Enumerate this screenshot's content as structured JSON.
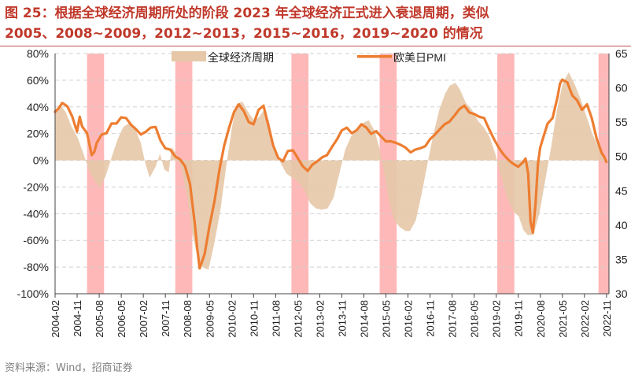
{
  "title_line1": "图 25：根据全球经济周期所处的阶段 2023 年全球经济正式进入衰退周期，类似",
  "title_line2": "2005、2008~2009，2012~2013，2015~2016，2019~2020 的情况",
  "source": "资料来源：Wind，招商证券",
  "colors": {
    "title": "#c0392b",
    "area": "#e6c8a8",
    "line": "#ed7d31",
    "recession": "#ff9a9a",
    "grid": "#d0d0d0"
  },
  "chart_data": {
    "type": "area+line",
    "legend": [
      {
        "name": "全球经济周期",
        "kind": "area"
      },
      {
        "name": "欧美日PMI",
        "kind": "line"
      }
    ],
    "left_axis": {
      "min": -100,
      "max": 80,
      "step": 20,
      "format": "percent",
      "tick_labels": [
        "80%",
        "60%",
        "40%",
        "20%",
        "0%",
        "-20%",
        "-40%",
        "-60%",
        "-80%",
        "-100%"
      ]
    },
    "right_axis": {
      "min": 30,
      "max": 65,
      "step": 5,
      "tick_labels": [
        "65",
        "60",
        "55",
        "50",
        "45",
        "40",
        "35",
        "30"
      ]
    },
    "x_range": [
      2004.083,
      2022.917
    ],
    "x_tick_labels": [
      "2004-02",
      "2004-11",
      "2005-08",
      "2006-05",
      "2007-02",
      "2007-11",
      "2008-08",
      "2009-05",
      "2010-02",
      "2010-11",
      "2011-08",
      "2012-05",
      "2013-02",
      "2013-11",
      "2014-08",
      "2015-05",
      "2016-02",
      "2016-11",
      "2017-08",
      "2018-05",
      "2019-02",
      "2019-11",
      "2020-08",
      "2021-05",
      "2022-02",
      "2022-11"
    ],
    "recession_bands": [
      [
        2005.17,
        2005.75
      ],
      [
        2008.17,
        2008.75
      ],
      [
        2012.12,
        2012.7
      ],
      [
        2015.12,
        2015.7
      ],
      [
        2019.12,
        2019.7
      ],
      [
        2022.56,
        2023.15
      ]
    ],
    "series": [
      {
        "name": "全球经济周期",
        "axis": "left",
        "points": [
          [
            2004.08,
            37
          ],
          [
            2004.25,
            42
          ],
          [
            2004.45,
            36
          ],
          [
            2004.65,
            25
          ],
          [
            2004.85,
            17
          ],
          [
            2005.05,
            5
          ],
          [
            2005.25,
            -8
          ],
          [
            2005.45,
            -16
          ],
          [
            2005.6,
            -21
          ],
          [
            2005.8,
            -12
          ],
          [
            2006.0,
            2
          ],
          [
            2006.2,
            15
          ],
          [
            2006.4,
            25
          ],
          [
            2006.6,
            28
          ],
          [
            2006.8,
            24
          ],
          [
            2007.0,
            13
          ],
          [
            2007.15,
            -2
          ],
          [
            2007.3,
            -13
          ],
          [
            2007.5,
            -5
          ],
          [
            2007.65,
            5
          ],
          [
            2007.8,
            -7
          ],
          [
            2007.95,
            -9
          ],
          [
            2008.05,
            10
          ],
          [
            2008.2,
            5
          ],
          [
            2008.4,
            -8
          ],
          [
            2008.6,
            -30
          ],
          [
            2008.75,
            -55
          ],
          [
            2008.9,
            -70
          ],
          [
            2009.1,
            -80
          ],
          [
            2009.3,
            -82
          ],
          [
            2009.5,
            -62
          ],
          [
            2009.7,
            -38
          ],
          [
            2009.9,
            -5
          ],
          [
            2010.1,
            25
          ],
          [
            2010.25,
            42
          ],
          [
            2010.45,
            44
          ],
          [
            2010.65,
            36
          ],
          [
            2010.85,
            30
          ],
          [
            2011.0,
            32
          ],
          [
            2011.2,
            38
          ],
          [
            2011.35,
            30
          ],
          [
            2011.55,
            10
          ],
          [
            2011.75,
            -2
          ],
          [
            2011.95,
            -10
          ],
          [
            2012.15,
            -13
          ],
          [
            2012.35,
            -16
          ],
          [
            2012.55,
            -22
          ],
          [
            2012.75,
            -32
          ],
          [
            2012.95,
            -36
          ],
          [
            2013.15,
            -37
          ],
          [
            2013.35,
            -36
          ],
          [
            2013.55,
            -28
          ],
          [
            2013.75,
            -10
          ],
          [
            2013.95,
            8
          ],
          [
            2014.15,
            18
          ],
          [
            2014.35,
            24
          ],
          [
            2014.55,
            28
          ],
          [
            2014.75,
            30
          ],
          [
            2014.95,
            22
          ],
          [
            2015.1,
            10
          ],
          [
            2015.3,
            -12
          ],
          [
            2015.45,
            -32
          ],
          [
            2015.6,
            -44
          ],
          [
            2015.8,
            -50
          ],
          [
            2016.0,
            -53
          ],
          [
            2016.15,
            -53
          ],
          [
            2016.35,
            -45
          ],
          [
            2016.55,
            -25
          ],
          [
            2016.75,
            -2
          ],
          [
            2016.95,
            20
          ],
          [
            2017.15,
            38
          ],
          [
            2017.35,
            50
          ],
          [
            2017.5,
            56
          ],
          [
            2017.7,
            58
          ],
          [
            2017.85,
            53
          ],
          [
            2018.05,
            43
          ],
          [
            2018.25,
            38
          ],
          [
            2018.45,
            30
          ],
          [
            2018.65,
            25
          ],
          [
            2018.85,
            18
          ],
          [
            2019.05,
            5
          ],
          [
            2019.25,
            -12
          ],
          [
            2019.45,
            -28
          ],
          [
            2019.65,
            -38
          ],
          [
            2019.85,
            -42
          ],
          [
            2020.0,
            -52
          ],
          [
            2020.15,
            -56
          ],
          [
            2020.35,
            -56
          ],
          [
            2020.55,
            -40
          ],
          [
            2020.75,
            -15
          ],
          [
            2020.95,
            10
          ],
          [
            2021.15,
            38
          ],
          [
            2021.35,
            58
          ],
          [
            2021.55,
            66
          ],
          [
            2021.75,
            57
          ],
          [
            2021.95,
            46
          ],
          [
            2022.15,
            33
          ],
          [
            2022.35,
            20
          ],
          [
            2022.55,
            10
          ],
          [
            2022.75,
            0
          ],
          [
            2022.85,
            -3
          ]
        ]
      },
      {
        "name": "欧美日PMI",
        "axis": "right",
        "points": [
          [
            2004.08,
            56.5
          ],
          [
            2004.2,
            57.0
          ],
          [
            2004.33,
            57.8
          ],
          [
            2004.5,
            57.3
          ],
          [
            2004.67,
            55.8
          ],
          [
            2004.83,
            53.6
          ],
          [
            2004.92,
            55.8
          ],
          [
            2005.0,
            54.4
          ],
          [
            2005.17,
            53.4
          ],
          [
            2005.33,
            50.2
          ],
          [
            2005.42,
            50.7
          ],
          [
            2005.5,
            52.0
          ],
          [
            2005.67,
            53.2
          ],
          [
            2005.83,
            53.4
          ],
          [
            2006.0,
            54.8
          ],
          [
            2006.17,
            54.8
          ],
          [
            2006.33,
            55.7
          ],
          [
            2006.5,
            55.6
          ],
          [
            2006.67,
            54.6
          ],
          [
            2006.83,
            54.0
          ],
          [
            2007.0,
            53.2
          ],
          [
            2007.17,
            53.6
          ],
          [
            2007.33,
            54.2
          ],
          [
            2007.5,
            54.3
          ],
          [
            2007.67,
            52.3
          ],
          [
            2007.83,
            51.2
          ],
          [
            2008.0,
            51.0
          ],
          [
            2008.17,
            50.0
          ],
          [
            2008.33,
            49.6
          ],
          [
            2008.5,
            48.6
          ],
          [
            2008.67,
            46.0
          ],
          [
            2008.83,
            40.4
          ],
          [
            2008.92,
            36.5
          ],
          [
            2009.0,
            33.7
          ],
          [
            2009.17,
            35.8
          ],
          [
            2009.33,
            39.8
          ],
          [
            2009.5,
            43.4
          ],
          [
            2009.67,
            48.0
          ],
          [
            2009.83,
            51.5
          ],
          [
            2010.0,
            54.2
          ],
          [
            2010.17,
            56.5
          ],
          [
            2010.33,
            57.6
          ],
          [
            2010.5,
            56.6
          ],
          [
            2010.67,
            55.0
          ],
          [
            2010.83,
            54.7
          ],
          [
            2011.0,
            56.8
          ],
          [
            2011.17,
            57.4
          ],
          [
            2011.33,
            54.6
          ],
          [
            2011.5,
            51.6
          ],
          [
            2011.67,
            49.8
          ],
          [
            2011.83,
            49.3
          ],
          [
            2012.0,
            50.8
          ],
          [
            2012.17,
            50.9
          ],
          [
            2012.33,
            49.8
          ],
          [
            2012.5,
            48.6
          ],
          [
            2012.67,
            47.9
          ],
          [
            2012.83,
            48.8
          ],
          [
            2013.0,
            49.3
          ],
          [
            2013.17,
            49.9
          ],
          [
            2013.33,
            50.2
          ],
          [
            2013.5,
            51.4
          ],
          [
            2013.67,
            52.5
          ],
          [
            2013.83,
            53.8
          ],
          [
            2014.0,
            54.2
          ],
          [
            2014.17,
            53.4
          ],
          [
            2014.33,
            53.8
          ],
          [
            2014.5,
            54.7
          ],
          [
            2014.67,
            54.2
          ],
          [
            2014.83,
            53.3
          ],
          [
            2015.0,
            53.7
          ],
          [
            2015.17,
            52.9
          ],
          [
            2015.33,
            52.2
          ],
          [
            2015.5,
            52.2
          ],
          [
            2015.67,
            52.0
          ],
          [
            2015.83,
            51.7
          ],
          [
            2016.0,
            51.3
          ],
          [
            2016.17,
            50.6
          ],
          [
            2016.33,
            51.0
          ],
          [
            2016.5,
            51.2
          ],
          [
            2016.67,
            51.5
          ],
          [
            2016.83,
            52.5
          ],
          [
            2017.0,
            53.2
          ],
          [
            2017.17,
            54.0
          ],
          [
            2017.33,
            54.7
          ],
          [
            2017.5,
            55.1
          ],
          [
            2017.67,
            56.0
          ],
          [
            2017.83,
            56.9
          ],
          [
            2018.0,
            57.4
          ],
          [
            2018.17,
            56.4
          ],
          [
            2018.33,
            56.2
          ],
          [
            2018.5,
            55.8
          ],
          [
            2018.67,
            55.6
          ],
          [
            2018.83,
            54.1
          ],
          [
            2019.0,
            52.6
          ],
          [
            2019.17,
            51.3
          ],
          [
            2019.33,
            50.3
          ],
          [
            2019.5,
            49.5
          ],
          [
            2019.67,
            48.9
          ],
          [
            2019.83,
            48.5
          ],
          [
            2020.0,
            49.2
          ],
          [
            2020.08,
            49.7
          ],
          [
            2020.17,
            47.5
          ],
          [
            2020.25,
            40.5
          ],
          [
            2020.33,
            38.9
          ],
          [
            2020.42,
            43.2
          ],
          [
            2020.5,
            48.9
          ],
          [
            2020.58,
            51.3
          ],
          [
            2020.67,
            52.6
          ],
          [
            2020.83,
            54.8
          ],
          [
            2021.0,
            55.6
          ],
          [
            2021.17,
            58.7
          ],
          [
            2021.25,
            60.6
          ],
          [
            2021.33,
            61.2
          ],
          [
            2021.5,
            60.8
          ],
          [
            2021.67,
            58.9
          ],
          [
            2021.83,
            58.2
          ],
          [
            2022.0,
            56.8
          ],
          [
            2022.17,
            57.6
          ],
          [
            2022.33,
            55.6
          ],
          [
            2022.5,
            52.6
          ],
          [
            2022.67,
            50.5
          ],
          [
            2022.75,
            50.0
          ],
          [
            2022.83,
            49.2
          ]
        ]
      }
    ]
  }
}
